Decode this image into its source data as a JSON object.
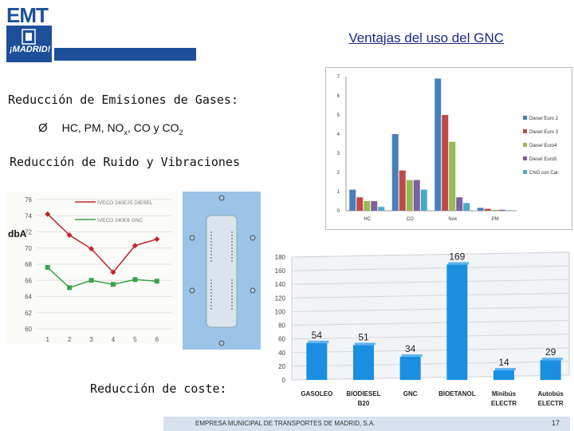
{
  "logo": {
    "brand": "EMT",
    "city": "¡MADRID!"
  },
  "title": "Ventajas del uso del GNC",
  "section1": {
    "heading": "Reducción de Emisiones de Gases:",
    "bullet_marker": "Ø",
    "bullet_text_a": "HC, PM, NO",
    "bullet_sub_x": "x",
    "bullet_text_b": ", CO y CO",
    "bullet_sub_2": "2"
  },
  "section2": {
    "heading": "Reducción de Ruido y Vibraciones"
  },
  "section3": {
    "heading": "Reducción de coste:"
  },
  "noise_unit_label": "dbA",
  "footer": {
    "text": "EMPRESA MUNICIPAL DE TRANSPORTES DE MADRID, S.A.",
    "page": "17"
  },
  "colors": {
    "brand_blue": "#1d4f9a",
    "title_blue": "#1a2a8a"
  },
  "chart_data": [
    {
      "type": "bar",
      "title": "",
      "categories": [
        "HC",
        "CO",
        "Nox",
        "PM"
      ],
      "ylim": [
        0,
        7
      ],
      "yticks": [
        "0",
        "1",
        "2",
        "3",
        "4",
        "5",
        "6",
        "7"
      ],
      "legend_position": "right",
      "series": [
        {
          "name": "Diesel Euro 2",
          "color": "#4a7ebb",
          "values": [
            1.1,
            4.0,
            6.9,
            0.15
          ]
        },
        {
          "name": "Diesel Euro 3",
          "color": "#be4b48",
          "values": [
            0.7,
            2.1,
            5.0,
            0.1
          ]
        },
        {
          "name": "Diesel Euro4",
          "color": "#98b954",
          "values": [
            0.5,
            1.6,
            3.6,
            0.05
          ]
        },
        {
          "name": "Diesel Euro5",
          "color": "#7d60a0",
          "values": [
            0.5,
            1.6,
            0.7,
            0.05
          ]
        },
        {
          "name": "CNG con Cat.",
          "color": "#46aac4",
          "values": [
            0.2,
            1.1,
            0.4,
            0.02
          ]
        }
      ]
    },
    {
      "type": "line",
      "title": "",
      "x": [
        1,
        2,
        3,
        4,
        5,
        6
      ],
      "ylim": [
        60,
        76
      ],
      "yticks": [
        "60",
        "62",
        "64",
        "66",
        "68",
        "70",
        "72",
        "74",
        "76"
      ],
      "xticks": [
        "1",
        "2",
        "3",
        "4",
        "5",
        "6"
      ],
      "ylabel": "dbA",
      "series": [
        {
          "name": "IVECO 240E25 DIESEL",
          "color": "#c0262c",
          "values": [
            74.2,
            71.6,
            69.9,
            67.0,
            70.3,
            71.1
          ]
        },
        {
          "name": "IVECO 240E6 GNC",
          "color": "#3aa24a",
          "values": [
            67.6,
            65.1,
            66.0,
            65.5,
            66.1,
            65.9
          ]
        }
      ]
    },
    {
      "type": "bar",
      "title": "",
      "categories": [
        "GASOLEO",
        "BIODIESEL B20",
        "GNC",
        "BIOETANOL",
        "Minibús ELECTR",
        "Autobús ELECTR"
      ],
      "category_lines": [
        [
          "GASOLEO"
        ],
        [
          "BIODIESEL",
          "B20"
        ],
        [
          "GNC"
        ],
        [
          "BIOETANOL"
        ],
        [
          "Minibús",
          "ELECTR"
        ],
        [
          "Autobús",
          "ELECTR"
        ]
      ],
      "values": [
        54,
        51,
        34,
        169,
        14,
        29
      ],
      "value_labels": [
        "54",
        "51",
        "34",
        "169",
        "14",
        "29"
      ],
      "ylim": [
        0,
        180
      ],
      "yticks": [
        "0",
        "20",
        "40",
        "60",
        "80",
        "100",
        "120",
        "140",
        "160",
        "180"
      ],
      "color": "#1a8fe0"
    }
  ]
}
